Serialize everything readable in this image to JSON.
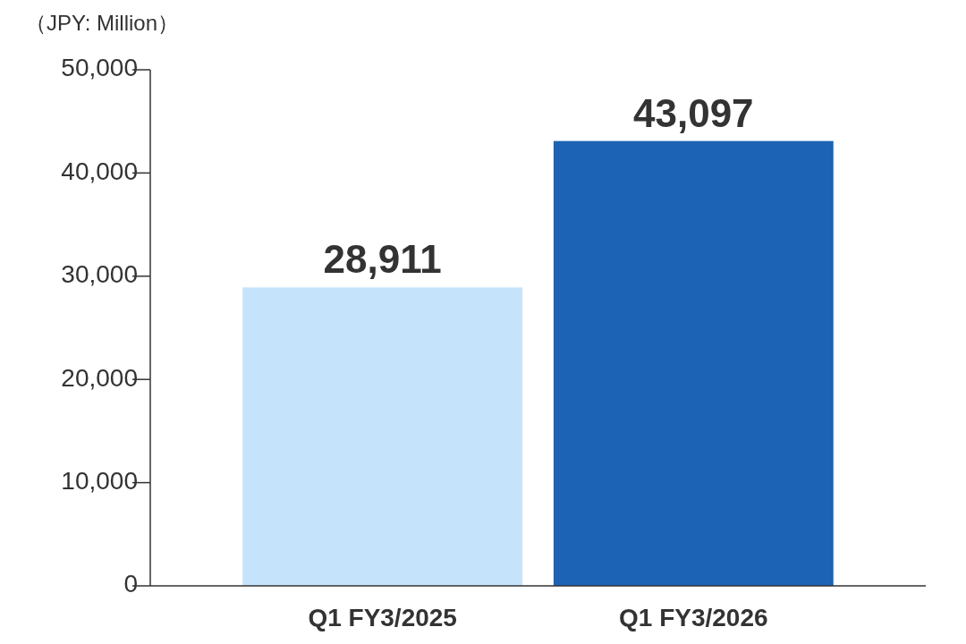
{
  "chart_data": {
    "type": "bar",
    "ylabel": "（JPY: Million）",
    "categories": [
      "Q1 FY3/2025",
      "Q1 FY3/2026"
    ],
    "values": [
      28911,
      43097
    ],
    "colors": [
      "#c5e3fb",
      "#1c62b5"
    ],
    "ylim": [
      0,
      50000
    ],
    "yticks": [
      {
        "value": 0,
        "label": "0"
      },
      {
        "value": 10000,
        "label": "10,000"
      },
      {
        "value": 20000,
        "label": "20,000"
      },
      {
        "value": 30000,
        "label": "30,000"
      },
      {
        "value": 40000,
        "label": "40,000"
      },
      {
        "value": 50000,
        "label": "50,000"
      }
    ],
    "value_labels": [
      "28,911",
      "43,097"
    ],
    "grid": false
  }
}
